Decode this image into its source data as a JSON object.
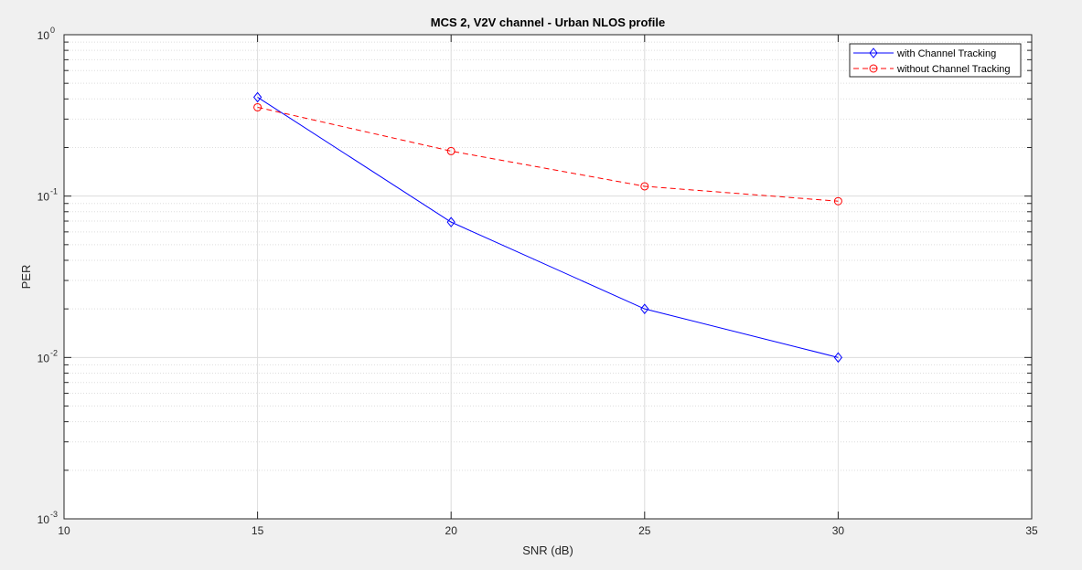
{
  "chart_data": {
    "type": "line",
    "title": "MCS 2, V2V channel - Urban NLOS profile",
    "xlabel": "SNR (dB)",
    "ylabel": "PER",
    "yscale": "log",
    "xlim": [
      10,
      35
    ],
    "ylim": [
      0.001,
      1
    ],
    "xticks": [
      "10",
      "15",
      "20",
      "25",
      "30",
      "35"
    ],
    "yticks": [
      {
        "base": "10",
        "exp": "0"
      },
      {
        "base": "10",
        "exp": "-1"
      },
      {
        "base": "10",
        "exp": "-2"
      },
      {
        "base": "10",
        "exp": "-3"
      }
    ],
    "grid": true,
    "legend_position": "top-right",
    "series": [
      {
        "name": "with Channel Tracking",
        "x": [
          15,
          20,
          25,
          30
        ],
        "y": [
          0.41,
          0.069,
          0.02,
          0.01
        ],
        "color": "#0000ff",
        "marker": "diamond",
        "linestyle": "solid"
      },
      {
        "name": "without Channel Tracking",
        "x": [
          15,
          20,
          25,
          30
        ],
        "y": [
          0.355,
          0.19,
          0.115,
          0.093
        ],
        "color": "#ff0000",
        "marker": "circle",
        "linestyle": "dashed"
      }
    ]
  }
}
